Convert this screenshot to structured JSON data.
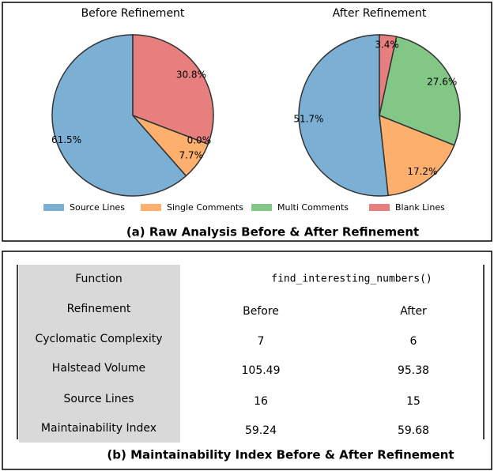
{
  "chart_data": [
    {
      "type": "pie",
      "title": "Before Refinement",
      "categories": [
        "Source Lines",
        "Single Comments",
        "Multi Comments",
        "Blank Lines"
      ],
      "values": [
        61.5,
        7.7,
        0.0,
        30.8
      ],
      "value_labels": [
        "61.5%",
        "7.7%",
        "0.0%",
        "30.8%"
      ],
      "colors": [
        "#7bafd4",
        "#fdb06d",
        "#82c785",
        "#e77f7f"
      ]
    },
    {
      "type": "pie",
      "title": "After Refinement",
      "categories": [
        "Source Lines",
        "Single Comments",
        "Multi Comments",
        "Blank Lines"
      ],
      "values": [
        51.7,
        17.2,
        27.6,
        3.4
      ],
      "value_labels": [
        "51.7%",
        "17.2%",
        "27.6%",
        "3.4%"
      ],
      "colors": [
        "#7bafd4",
        "#fdb06d",
        "#82c785",
        "#e77f7f"
      ]
    }
  ],
  "caption_a": "(a) Raw Analysis Before & After Refinement",
  "table": {
    "rows": [
      [
        "Function",
        "find_interesting_numbers()"
      ],
      [
        "Refinement",
        "Before",
        "After"
      ],
      [
        "Cyclomatic Complexity",
        7,
        6
      ],
      [
        "Halstead Volume",
        105.49,
        95.38
      ],
      [
        "Source Lines",
        16,
        15
      ],
      [
        "Maintainability Index",
        59.24,
        59.68
      ]
    ]
  },
  "caption_b": "(b) Maintainability Index Before & After Refinement"
}
